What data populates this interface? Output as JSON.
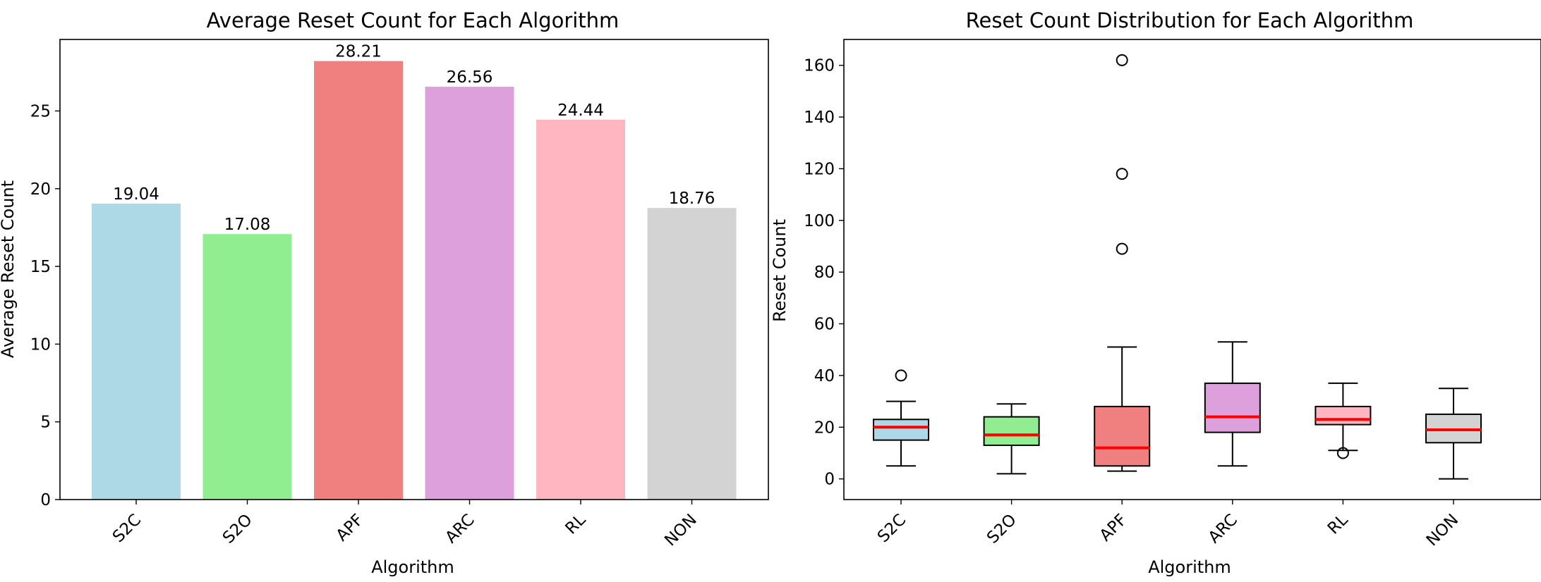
{
  "chart_data": [
    {
      "type": "bar",
      "title": "Average Reset Count for Each Algorithm",
      "xlabel": "Algorithm",
      "ylabel": "Average Reset Count",
      "categories": [
        "S2C",
        "S2O",
        "APF",
        "ARC",
        "RL",
        "NON"
      ],
      "values": [
        19.04,
        17.08,
        28.21,
        26.56,
        24.44,
        18.76
      ],
      "value_labels": [
        "19.04",
        "17.08",
        "28.21",
        "26.56",
        "24.44",
        "18.76"
      ],
      "colors": [
        "#add8e6",
        "#90ee90",
        "#f08080",
        "#dda0dd",
        "#ffb6c1",
        "#d3d3d3"
      ],
      "ylim": [
        0,
        29.6
      ],
      "yticks": [
        0,
        5,
        10,
        15,
        20,
        25
      ],
      "grid": false
    },
    {
      "type": "box",
      "title": "Reset Count Distribution for Each Algorithm",
      "xlabel": "Algorithm",
      "ylabel": "Reset Count",
      "categories": [
        "S2C",
        "S2O",
        "APF",
        "ARC",
        "RL",
        "NON"
      ],
      "colors": [
        "#add8e6",
        "#90ee90",
        "#f08080",
        "#dda0dd",
        "#ffb6c1",
        "#d3d3d3"
      ],
      "median_color": "#ff0000",
      "ylim": [
        -8,
        170
      ],
      "yticks": [
        0,
        20,
        40,
        60,
        80,
        100,
        120,
        140,
        160
      ],
      "grid": false,
      "boxes": [
        {
          "whisker_low": 5,
          "q1": 15,
          "median": 20,
          "q3": 23,
          "whisker_high": 30,
          "outliers": [
            40
          ]
        },
        {
          "whisker_low": 2,
          "q1": 13,
          "median": 17,
          "q3": 24,
          "whisker_high": 29,
          "outliers": []
        },
        {
          "whisker_low": 3,
          "q1": 5,
          "median": 12,
          "q3": 28,
          "whisker_high": 51,
          "outliers": [
            89,
            118,
            162
          ]
        },
        {
          "whisker_low": 5,
          "q1": 18,
          "median": 24,
          "q3": 37,
          "whisker_high": 53,
          "outliers": []
        },
        {
          "whisker_low": 11,
          "q1": 21,
          "median": 23,
          "q3": 28,
          "whisker_high": 37,
          "outliers": [
            10
          ]
        },
        {
          "whisker_low": 0,
          "q1": 14,
          "median": 19,
          "q3": 25,
          "whisker_high": 35,
          "outliers": []
        }
      ]
    }
  ]
}
